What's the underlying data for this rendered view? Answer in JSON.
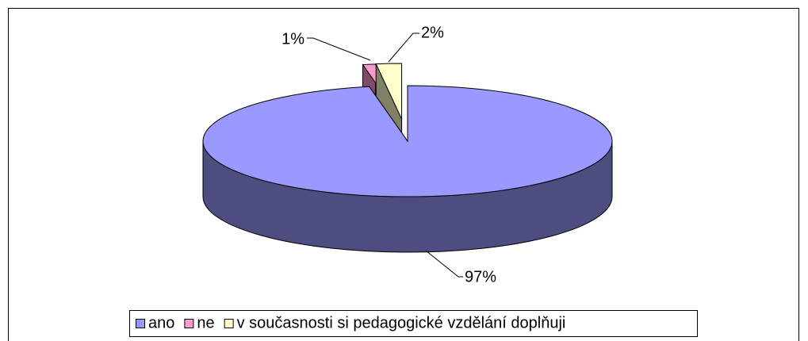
{
  "chart_data": {
    "type": "pie3d",
    "categories": [
      "ano",
      "ne",
      "v současnosti si pedagogické vzdělání doplňuji"
    ],
    "values": [
      97,
      1,
      2
    ],
    "value_labels": [
      "97%",
      "1%",
      "2%"
    ],
    "colors": [
      "#9999ff",
      "#ff99cc",
      "#ffffcc"
    ],
    "exploded": [
      false,
      true,
      true
    ],
    "legend": "bottom"
  }
}
